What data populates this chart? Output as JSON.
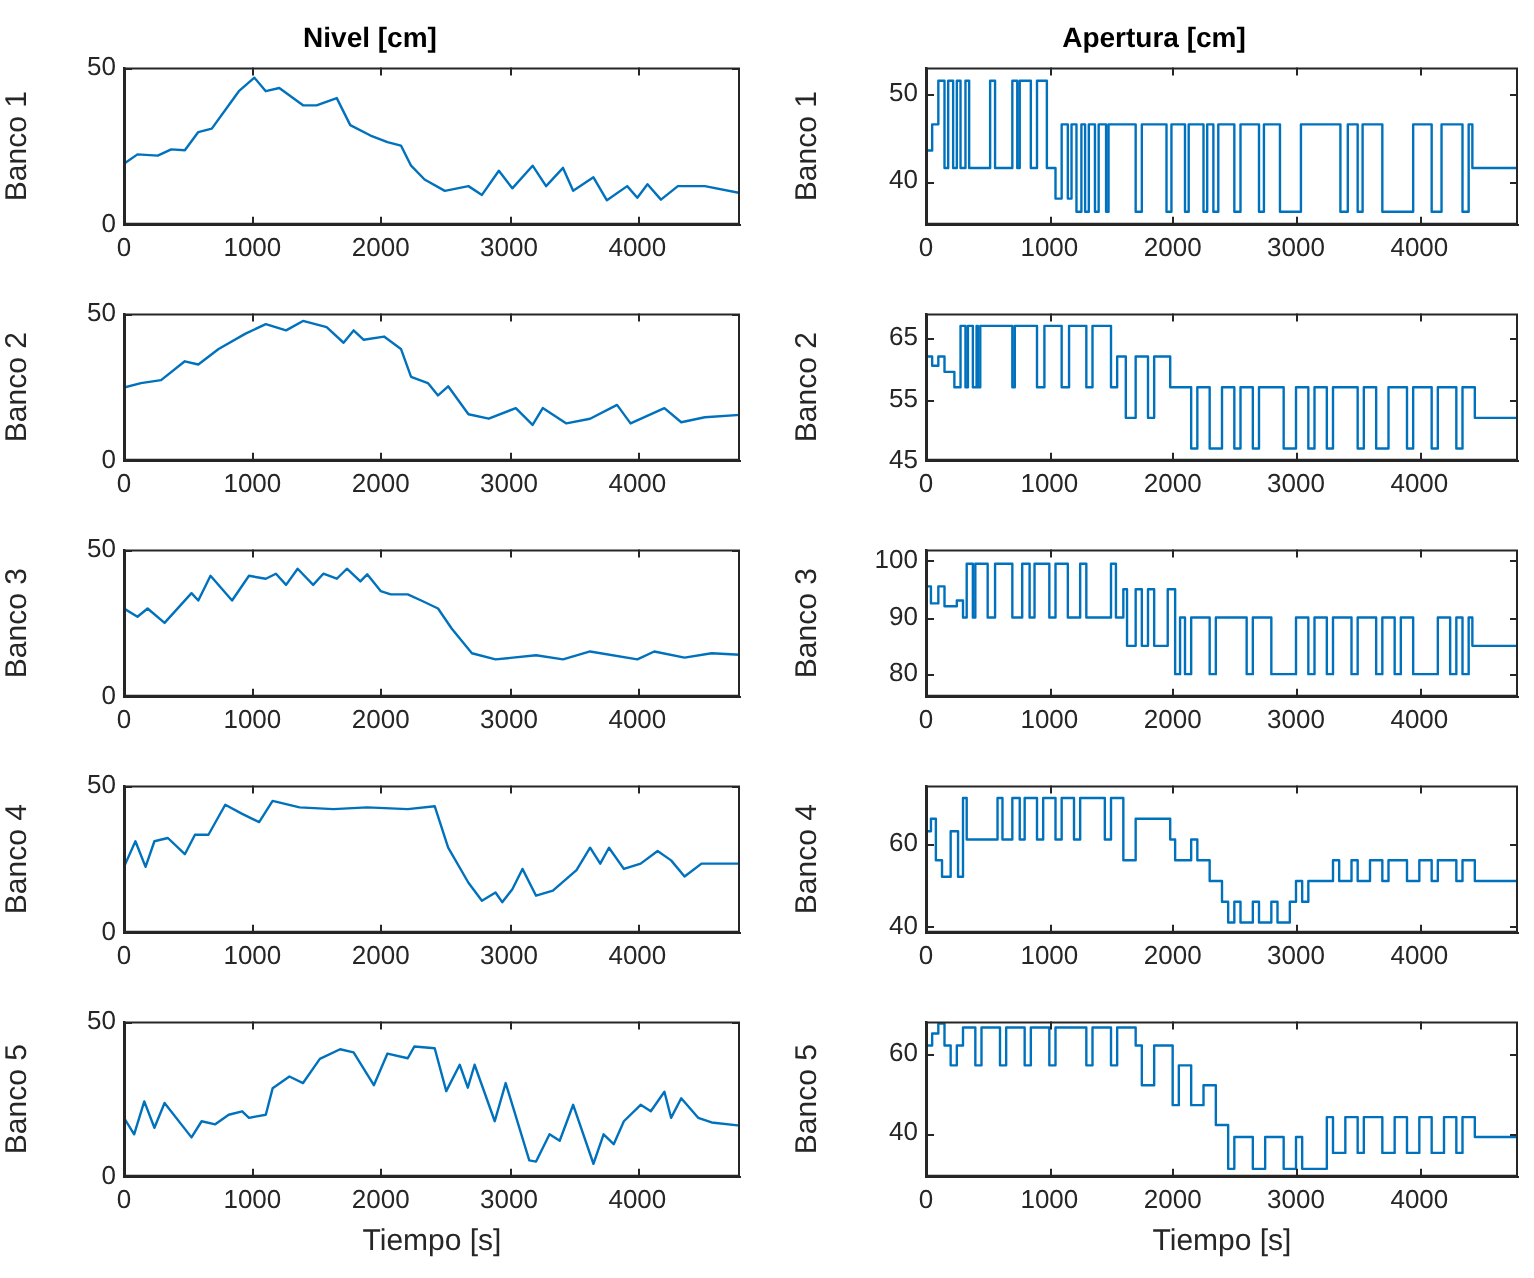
{
  "chart_data": [
    {
      "type": "line",
      "title": "Nivel [cm]",
      "ylabel": "Banco 1",
      "color": "#0072bd",
      "marker": "none",
      "xlim": [
        0,
        4800
      ],
      "xticks": [
        0,
        1000,
        2000,
        3000,
        4000
      ],
      "ylim": [
        0,
        50
      ],
      "yticks": [
        0,
        50
      ],
      "x": [
        0,
        105,
        263,
        368,
        474,
        579,
        684,
        816,
        895,
        1016,
        1105,
        1210,
        1395,
        1500,
        1658,
        1763,
        1921,
        2053,
        2158,
        2237,
        2342,
        2500,
        2684,
        2789,
        2921,
        3026,
        3184,
        3289,
        3421,
        3500,
        3658,
        3763,
        3921,
        4000,
        4079,
        4184,
        4316,
        4526,
        4800
      ],
      "values": [
        19.4,
        22.4,
        22,
        24,
        23.7,
        29.5,
        30.6,
        38,
        42.5,
        46.8,
        42.5,
        43.5,
        38,
        38,
        40.3,
        31.7,
        28.4,
        26.3,
        25.2,
        18.8,
        14.4,
        10.8,
        12.3,
        9.5,
        17.2,
        11.6,
        18.8,
        12.3,
        18.1,
        10.8,
        15.1,
        7.8,
        12.3,
        8.6,
        12.9,
        8,
        12.3,
        12.3,
        10.1
      ]
    },
    {
      "type": "step",
      "title": "Apertura [cm]",
      "ylabel": "Banco 1",
      "color": "#0072bd",
      "marker": "none",
      "xlim": [
        0,
        4800
      ],
      "xticks": [
        0,
        1000,
        2000,
        3000,
        4000
      ],
      "ylim": [
        35,
        53
      ],
      "yticks": [
        40,
        50
      ],
      "x": [
        0,
        50,
        100,
        150,
        180,
        220,
        250,
        280,
        320,
        350,
        520,
        560,
        700,
        740,
        760,
        850,
        900,
        980,
        1050,
        1100,
        1150,
        1180,
        1220,
        1260,
        1290,
        1320,
        1370,
        1400,
        1460,
        1480,
        1700,
        1750,
        1950,
        1990,
        2100,
        2130,
        2250,
        2280,
        2330,
        2370,
        2500,
        2550,
        2700,
        2740,
        2870,
        3040,
        3360,
        3420,
        3500,
        3540,
        3700,
        3950,
        4100,
        4180,
        4350,
        4400,
        4430,
        4800
      ],
      "values": [
        43.5,
        46.5,
        51.5,
        41.5,
        51.5,
        41.5,
        51.5,
        41.5,
        51.5,
        41.5,
        51.5,
        41.5,
        51.5,
        41.5,
        51.5,
        41.5,
        51.5,
        41.5,
        38,
        46.5,
        38,
        46.5,
        36.5,
        46.5,
        36.5,
        46.5,
        36.5,
        46.5,
        36.5,
        46.5,
        36.5,
        46.5,
        36.5,
        46.5,
        36.5,
        46.5,
        36.5,
        46.5,
        36.5,
        46.5,
        36.5,
        46.5,
        36.5,
        46.5,
        36.5,
        46.5,
        36.5,
        46.5,
        36.5,
        46.5,
        36.5,
        46.5,
        36.5,
        46.5,
        36.5,
        46.5,
        41.5,
        41.5
      ]
    },
    {
      "type": "line",
      "ylabel": "Banco 2",
      "color": "#0072bd",
      "marker": "none",
      "xlim": [
        0,
        4800
      ],
      "xticks": [
        0,
        1000,
        2000,
        3000,
        4000
      ],
      "ylim": [
        0,
        50
      ],
      "yticks": [
        0,
        50
      ],
      "x": [
        0,
        132,
        289,
        474,
        579,
        737,
        947,
        1105,
        1263,
        1395,
        1579,
        1711,
        1789,
        1868,
        2026,
        2158,
        2237,
        2368,
        2447,
        2526,
        2684,
        2842,
        3053,
        3184,
        3263,
        3447,
        3632,
        3842,
        3947,
        4211,
        4342,
        4526,
        4800
      ],
      "values": [
        24.9,
        26.4,
        27.4,
        33.8,
        32.7,
        38,
        43.2,
        46.4,
        44.3,
        47.5,
        45.4,
        40.1,
        44.3,
        41.1,
        42.2,
        38,
        28.5,
        26.4,
        22.2,
        25.3,
        15.8,
        14.3,
        17.9,
        12.2,
        17.9,
        12.7,
        14.3,
        19,
        12.7,
        17.9,
        13.1,
        14.8,
        15.6
      ]
    },
    {
      "type": "step",
      "ylabel": "Banco 2",
      "color": "#0072bd",
      "marker": "none",
      "xlim": [
        0,
        4800
      ],
      "xticks": [
        0,
        1000,
        2000,
        3000,
        4000
      ],
      "ylim": [
        45,
        69
      ],
      "yticks": [
        45,
        55,
        65
      ],
      "x": [
        0,
        50,
        100,
        150,
        230,
        280,
        320,
        340,
        380,
        410,
        420,
        440,
        700,
        720,
        900,
        960,
        1100,
        1160,
        1300,
        1350,
        1500,
        1550,
        1620,
        1700,
        1800,
        1850,
        1980,
        2150,
        2200,
        2300,
        2400,
        2500,
        2550,
        2650,
        2700,
        2900,
        3000,
        3100,
        3150,
        3250,
        3300,
        3500,
        3550,
        3650,
        3750,
        3900,
        3950,
        4100,
        4150,
        4300,
        4350,
        4450,
        4800
      ],
      "values": [
        62,
        60.5,
        62,
        59.5,
        57,
        67,
        57,
        67,
        57,
        67,
        57,
        67,
        57,
        67,
        57,
        67,
        57,
        67,
        57,
        67,
        57,
        62,
        52,
        62,
        52,
        62,
        57,
        47,
        57,
        47,
        57,
        47,
        57,
        47,
        57,
        47,
        57,
        47,
        57,
        47,
        57,
        47,
        57,
        47,
        57,
        47,
        57,
        47,
        57,
        47,
        57,
        52,
        52
      ]
    },
    {
      "type": "line",
      "ylabel": "Banco 3",
      "color": "#0072bd",
      "marker": "none",
      "xlim": [
        0,
        4800
      ],
      "xticks": [
        0,
        1000,
        2000,
        3000,
        4000
      ],
      "ylim": [
        0,
        50
      ],
      "yticks": [
        0,
        50
      ],
      "x": [
        0,
        105,
        184,
        316,
        526,
        579,
        674,
        842,
        974,
        1105,
        1184,
        1263,
        1353,
        1474,
        1553,
        1658,
        1737,
        1842,
        1895,
        2000,
        2079,
        2211,
        2316,
        2447,
        2553,
        2711,
        2895,
        3211,
        3421,
        3632,
        4000,
        4132,
        4368,
        4579,
        4800
      ],
      "values": [
        30,
        27.2,
        30,
        25.1,
        35.2,
        32.7,
        41.1,
        32.7,
        41.1,
        40.1,
        41.8,
        38,
        43.5,
        38,
        41.8,
        40.1,
        43.5,
        39.2,
        41.6,
        35.9,
        34.8,
        34.8,
        32.7,
        30,
        23.2,
        14.8,
        12.7,
        14.1,
        12.7,
        15.4,
        12.7,
        15.4,
        13.3,
        14.8,
        14.3
      ]
    },
    {
      "type": "step",
      "ylabel": "Banco 3",
      "color": "#0072bd",
      "marker": "none",
      "xlim": [
        0,
        4800
      ],
      "xticks": [
        0,
        1000,
        2000,
        3000,
        4000
      ],
      "ylim": [
        76,
        102
      ],
      "yticks": [
        80,
        90,
        100
      ],
      "x": [
        0,
        40,
        100,
        150,
        250,
        300,
        330,
        380,
        400,
        500,
        560,
        700,
        780,
        840,
        880,
        1000,
        1050,
        1150,
        1250,
        1300,
        1500,
        1540,
        1600,
        1630,
        1700,
        1750,
        1800,
        1850,
        1960,
        2020,
        2060,
        2100,
        2150,
        2300,
        2350,
        2600,
        2650,
        2800,
        3000,
        3100,
        3150,
        3250,
        3300,
        3450,
        3500,
        3650,
        3700,
        3800,
        3850,
        3950,
        4150,
        4250,
        4300,
        4350,
        4400,
        4430,
        4800
      ],
      "values": [
        95.5,
        92.5,
        95.5,
        92,
        93,
        90,
        99.5,
        90,
        99.5,
        90,
        99.5,
        90,
        99.5,
        90,
        99.5,
        90,
        99.5,
        90,
        99.5,
        90,
        99.5,
        90,
        95,
        85,
        95,
        85,
        95,
        85,
        95,
        80,
        90,
        80,
        90,
        80,
        90,
        80,
        90,
        80,
        90,
        80,
        90,
        80,
        90,
        80,
        90,
        80,
        90,
        80,
        90,
        80,
        90,
        80,
        90,
        80,
        90,
        85,
        85
      ]
    },
    {
      "type": "line",
      "ylabel": "Banco 4",
      "color": "#0072bd",
      "marker": "none",
      "xlim": [
        0,
        4800
      ],
      "xticks": [
        0,
        1000,
        2000,
        3000,
        4000
      ],
      "ylim": [
        0,
        50
      ],
      "yticks": [
        0,
        50
      ],
      "x": [
        0,
        89,
        168,
        237,
        342,
        474,
        553,
        658,
        789,
        921,
        1053,
        1158,
        1368,
        1632,
        1895,
        2211,
        2421,
        2526,
        2684,
        2789,
        2895,
        2947,
        3026,
        3105,
        3211,
        3342,
        3526,
        3632,
        3711,
        3779,
        3895,
        4026,
        4158,
        4263,
        4368,
        4500,
        4800
      ],
      "values": [
        22.4,
        31.1,
        22.4,
        31.1,
        32.2,
        26.7,
        33.3,
        33.3,
        43.5,
        40.4,
        37.6,
        44.8,
        42.6,
        42,
        42.6,
        42,
        43,
        28.9,
        17,
        10.9,
        13.7,
        10.4,
        14.8,
        21.7,
        12.6,
        14.3,
        21.3,
        28.9,
        23.5,
        28.9,
        21.7,
        23.5,
        27.8,
        24.6,
        19.1,
        23.5,
        23.5
      ]
    },
    {
      "type": "step",
      "ylabel": "Banco 4",
      "color": "#0072bd",
      "marker": "none",
      "xlim": [
        0,
        4800
      ],
      "xticks": [
        0,
        1000,
        2000,
        3000,
        4000
      ],
      "ylim": [
        38.5,
        74
      ],
      "yticks": [
        40,
        60
      ],
      "x": [
        0,
        40,
        80,
        130,
        200,
        260,
        300,
        330,
        580,
        620,
        700,
        760,
        800,
        900,
        950,
        1050,
        1100,
        1200,
        1250,
        1450,
        1500,
        1600,
        1700,
        1980,
        2020,
        2150,
        2200,
        2300,
        2400,
        2450,
        2500,
        2550,
        2650,
        2700,
        2800,
        2850,
        2950,
        3000,
        3050,
        3100,
        3300,
        3350,
        3450,
        3500,
        3600,
        3700,
        3750,
        3900,
        4000,
        4100,
        4150,
        4300,
        4350,
        4450,
        4800
      ],
      "values": [
        63,
        66,
        56,
        52,
        63,
        52,
        71,
        61,
        71,
        61,
        71,
        61,
        71,
        61,
        71,
        61,
        71,
        61,
        71,
        61,
        71,
        56,
        66,
        61,
        56,
        61,
        56,
        51,
        46,
        41,
        46,
        41,
        46,
        41,
        46,
        41,
        46,
        51,
        46,
        51,
        56,
        51,
        56,
        51,
        56,
        51,
        56,
        51,
        56,
        51,
        56,
        51,
        56,
        51,
        51
      ]
    },
    {
      "type": "line",
      "ylabel": "Banco 5",
      "xlabel": "Tiempo [s]",
      "color": "#0072bd",
      "marker": "none",
      "xlim": [
        0,
        4800
      ],
      "xticks": [
        0,
        1000,
        2000,
        3000,
        4000
      ],
      "ylim": [
        0,
        50
      ],
      "yticks": [
        0,
        50
      ],
      "x": [
        0,
        79,
        158,
        237,
        316,
        526,
        605,
        711,
        816,
        921,
        974,
        1105,
        1158,
        1289,
        1395,
        1526,
        1684,
        1789,
        1947,
        2053,
        2211,
        2263,
        2421,
        2511,
        2616,
        2679,
        2732,
        2889,
        2974,
        3158,
        3211,
        3316,
        3395,
        3500,
        3658,
        3737,
        3816,
        3895,
        4026,
        4105,
        4211,
        4263,
        4342,
        4474,
        4579,
        4800
      ],
      "values": [
        19,
        13.7,
        24.3,
        15.8,
        23.8,
        12.7,
        17.9,
        16.9,
        20,
        21.1,
        19,
        20,
        28.5,
        32.3,
        30.2,
        38,
        41.1,
        40.1,
        29.5,
        39.7,
        38.2,
        42,
        41.4,
        27.6,
        36.1,
        28.7,
        36.1,
        17.9,
        30.2,
        5.3,
        4.9,
        13.7,
        11.6,
        23.2,
        4.2,
        13.7,
        10.5,
        17.9,
        23.2,
        21.1,
        27.4,
        19,
        25.3,
        19,
        17.5,
        16.5
      ]
    },
    {
      "type": "step",
      "ylabel": "Banco 5",
      "xlabel": "Tiempo [s]",
      "color": "#0072bd",
      "marker": "none",
      "xlim": [
        0,
        4800
      ],
      "xticks": [
        0,
        1000,
        2000,
        3000,
        4000
      ],
      "ylim": [
        29,
        68
      ],
      "yticks": [
        40,
        60
      ],
      "x": [
        0,
        50,
        100,
        150,
        200,
        250,
        300,
        400,
        450,
        600,
        650,
        800,
        850,
        1000,
        1050,
        1300,
        1350,
        1500,
        1550,
        1700,
        1750,
        1850,
        2000,
        2050,
        2150,
        2250,
        2350,
        2450,
        2500,
        2650,
        2750,
        2900,
        3000,
        3050,
        3250,
        3300,
        3400,
        3500,
        3550,
        3700,
        3800,
        3900,
        4000,
        4100,
        4200,
        4300,
        4350,
        4450,
        4800
      ],
      "values": [
        62,
        65,
        67.5,
        62,
        57,
        62,
        66.5,
        57,
        66.5,
        57,
        66.5,
        57,
        66.5,
        57,
        66.5,
        57,
        66.5,
        57,
        66.5,
        62,
        52,
        62,
        47,
        57,
        47,
        52,
        42,
        31,
        39,
        31,
        39,
        31,
        39,
        31,
        44,
        35,
        44,
        35,
        44,
        35,
        44,
        35,
        44,
        35,
        44,
        35,
        44,
        39,
        39
      ]
    }
  ]
}
